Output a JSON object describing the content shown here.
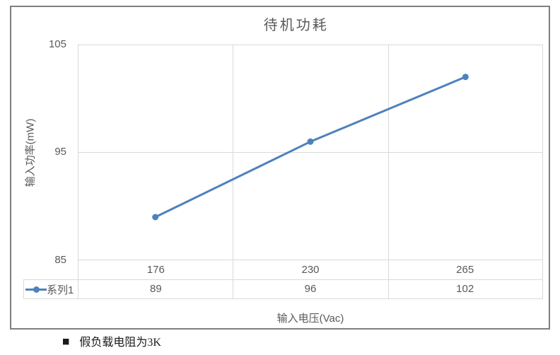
{
  "chart_data": {
    "type": "line",
    "title": "待机功耗",
    "categories": [
      176,
      230,
      265
    ],
    "series": [
      {
        "name": "系列1",
        "values": [
          89,
          96,
          102
        ]
      }
    ],
    "xlabel": "输入电压(Vac)",
    "ylabel": "输入功率(mW)",
    "ylim": [
      85,
      105
    ],
    "yticks_top_down": [
      105,
      95,
      85
    ],
    "grid": true,
    "has_data_table": true,
    "legend_position": "data-table-left",
    "marker": "circle",
    "line_color": "#4F81BD"
  },
  "note": {
    "bullet": "■",
    "text": "假负载电阻为3K"
  },
  "colors": {
    "series_blue": "#4F81BD",
    "grid_line": "#D9D9D9",
    "chart_text": "#595959",
    "frame_border": "#7F7F7F",
    "note_text": "#1A1A1A",
    "background": "#FFFFFF"
  }
}
